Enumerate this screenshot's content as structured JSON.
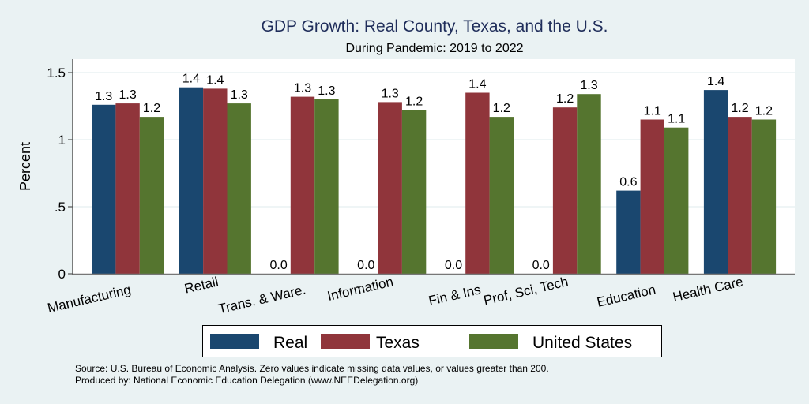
{
  "chart_data": {
    "type": "bar",
    "title": "GDP Growth: Real County, Texas, and the U.S.",
    "subtitle": "During Pandemic: 2019 to 2022",
    "xlabel": "",
    "ylabel": "Percent",
    "ylim": [
      0,
      1.6
    ],
    "yticks": [
      0,
      0.5,
      1,
      1.5
    ],
    "ytick_labels": [
      "0",
      ".5",
      "1",
      "1.5"
    ],
    "grid": true,
    "legend_position": "bottom",
    "categories": [
      "Manufacturing",
      "Retail",
      "Trans. & Ware.",
      "Information",
      "Fin & Ins",
      "Prof, Sci, Tech",
      "Education",
      "Health Care"
    ],
    "series": [
      {
        "name": "Real",
        "color": "#1A476F",
        "values": [
          1.26,
          1.39,
          0,
          0,
          0,
          0,
          0.62,
          1.37
        ],
        "labels": [
          "1.3",
          "1.4",
          "0.0",
          "0.0",
          "0.0",
          "0.0",
          "0.6",
          "1.4"
        ]
      },
      {
        "name": "Texas",
        "color": "#90353B",
        "values": [
          1.27,
          1.38,
          1.32,
          1.28,
          1.35,
          1.24,
          1.15,
          1.17
        ],
        "labels": [
          "1.3",
          "1.4",
          "1.3",
          "1.3",
          "1.4",
          "1.2",
          "1.1",
          "1.2"
        ]
      },
      {
        "name": "United States",
        "color": "#55752F",
        "values": [
          1.17,
          1.27,
          1.3,
          1.22,
          1.17,
          1.34,
          1.09,
          1.15
        ],
        "labels": [
          "1.2",
          "1.3",
          "1.3",
          "1.2",
          "1.2",
          "1.3",
          "1.1",
          "1.2"
        ]
      }
    ],
    "notes": [
      "Source: U.S. Bureau of Economic Analysis. Zero values indicate missing data values, or values greater than 200.",
      "Produced by: National Economic Education Delegation (www.NEEDelegation.org)"
    ]
  }
}
